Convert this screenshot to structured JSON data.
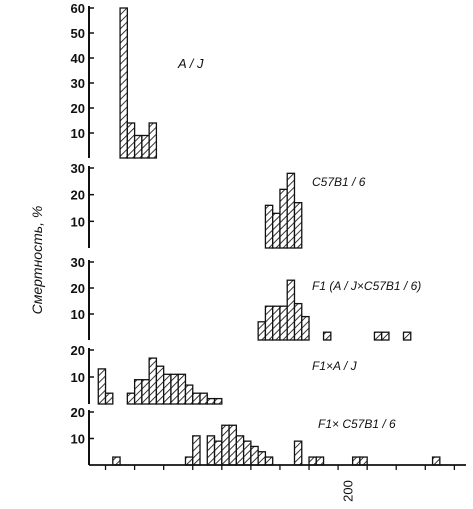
{
  "chart_data": {
    "type": "bar",
    "ylabel": "Смертность, %",
    "x_tick_label": "200",
    "x_tick_value": 200,
    "x_range": [
      20,
      278
    ],
    "bin_width": 5,
    "panels": [
      {
        "name": "A / J",
        "ylim": [
          0,
          60
        ],
        "yticks": [
          10,
          20,
          30,
          40,
          50,
          60
        ],
        "bars": [
          {
            "x": 40,
            "y": 60
          },
          {
            "x": 45,
            "y": 14
          },
          {
            "x": 50,
            "y": 9
          },
          {
            "x": 55,
            "y": 9
          },
          {
            "x": 60,
            "y": 14
          }
        ]
      },
      {
        "name": "C57B1 / 6",
        "ylim": [
          0,
          30
        ],
        "yticks": [
          10,
          20,
          30
        ],
        "bars": [
          {
            "x": 140,
            "y": 16
          },
          {
            "x": 145,
            "y": 13
          },
          {
            "x": 150,
            "y": 22
          },
          {
            "x": 155,
            "y": 28
          },
          {
            "x": 160,
            "y": 17
          }
        ]
      },
      {
        "name": "F1 (A / J×C57B1 / 6)",
        "ylim": [
          0,
          30
        ],
        "yticks": [
          10,
          20,
          30
        ],
        "bars": [
          {
            "x": 135,
            "y": 7
          },
          {
            "x": 140,
            "y": 13
          },
          {
            "x": 145,
            "y": 13
          },
          {
            "x": 150,
            "y": 13
          },
          {
            "x": 155,
            "y": 23
          },
          {
            "x": 160,
            "y": 14
          },
          {
            "x": 165,
            "y": 9
          },
          {
            "x": 180,
            "y": 3
          },
          {
            "x": 215,
            "y": 3
          },
          {
            "x": 220,
            "y": 3
          },
          {
            "x": 235,
            "y": 3
          }
        ]
      },
      {
        "name": "F1×A / J",
        "ylim": [
          0,
          20
        ],
        "yticks": [
          10,
          20
        ],
        "bars": [
          {
            "x": 25,
            "y": 13
          },
          {
            "x": 30,
            "y": 4
          },
          {
            "x": 45,
            "y": 4
          },
          {
            "x": 50,
            "y": 9
          },
          {
            "x": 55,
            "y": 9
          },
          {
            "x": 60,
            "y": 17
          },
          {
            "x": 65,
            "y": 14
          },
          {
            "x": 70,
            "y": 11
          },
          {
            "x": 75,
            "y": 11
          },
          {
            "x": 80,
            "y": 11
          },
          {
            "x": 85,
            "y": 7
          },
          {
            "x": 90,
            "y": 4
          },
          {
            "x": 95,
            "y": 4
          },
          {
            "x": 100,
            "y": 2
          },
          {
            "x": 105,
            "y": 2
          }
        ]
      },
      {
        "name": "F1× C57B1 / 6",
        "ylim": [
          0,
          20
        ],
        "yticks": [
          10,
          20
        ],
        "bars": [
          {
            "x": 35,
            "y": 3
          },
          {
            "x": 85,
            "y": 3
          },
          {
            "x": 90,
            "y": 11
          },
          {
            "x": 100,
            "y": 11
          },
          {
            "x": 105,
            "y": 9
          },
          {
            "x": 110,
            "y": 15
          },
          {
            "x": 115,
            "y": 15
          },
          {
            "x": 120,
            "y": 11
          },
          {
            "x": 125,
            "y": 9
          },
          {
            "x": 130,
            "y": 7
          },
          {
            "x": 135,
            "y": 5
          },
          {
            "x": 140,
            "y": 3
          },
          {
            "x": 160,
            "y": 9
          },
          {
            "x": 170,
            "y": 3
          },
          {
            "x": 175,
            "y": 3
          },
          {
            "x": 200,
            "y": 3
          },
          {
            "x": 205,
            "y": 3
          },
          {
            "x": 255,
            "y": 3
          }
        ]
      }
    ]
  }
}
